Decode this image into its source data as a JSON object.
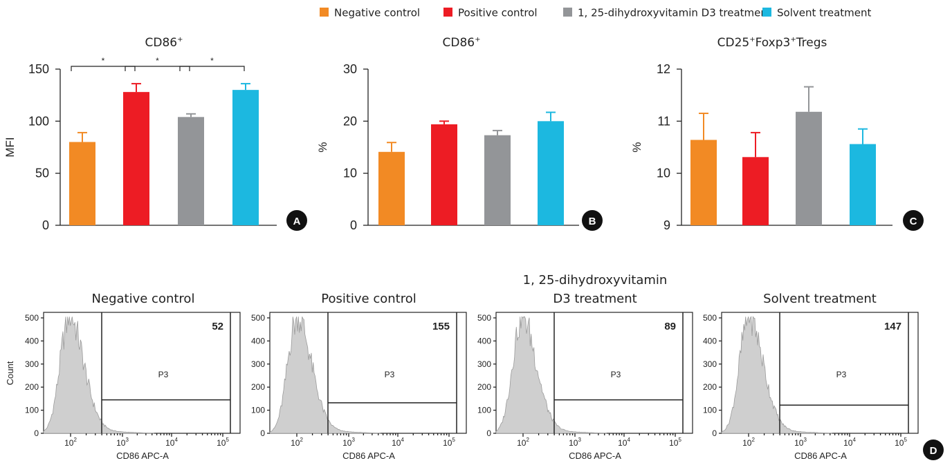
{
  "legend": [
    {
      "label": "Negative control",
      "color": "#f28a24"
    },
    {
      "label": "Positive control",
      "color": "#ed1c24"
    },
    {
      "label": "1, 25-dihydroxyvitamin D3 treatment",
      "color": "#939598"
    },
    {
      "label": "Solvent treatment",
      "color": "#1cb8e0"
    }
  ],
  "chart_data": [
    {
      "panel": "A",
      "type": "bar",
      "title": "CD86",
      "title_sup": "+",
      "ylabel": "MFI",
      "ylim": [
        0,
        150
      ],
      "yticks": [
        0,
        50,
        100,
        150
      ],
      "categories": [
        "Negative control",
        "Positive control",
        "1, 25-dihydroxyvitamin D3 treatment",
        "Solvent treatment"
      ],
      "values": [
        80,
        128,
        104,
        130
      ],
      "errors": [
        9,
        8,
        3,
        6
      ],
      "significance": [
        {
          "from": 0,
          "to": 1,
          "label": "*"
        },
        {
          "from": 1,
          "to": 2,
          "label": "*"
        },
        {
          "from": 2,
          "to": 3,
          "label": "*"
        }
      ]
    },
    {
      "panel": "B",
      "type": "bar",
      "title": "CD86",
      "title_sup": "+",
      "ylabel": "%",
      "ylim": [
        0,
        30
      ],
      "yticks": [
        0,
        10,
        20,
        30
      ],
      "categories": [
        "Negative control",
        "Positive control",
        "1, 25-dihydroxyvitamin D3 treatment",
        "Solvent treatment"
      ],
      "values": [
        14.1,
        19.4,
        17.3,
        20.0
      ],
      "errors": [
        1.8,
        0.6,
        0.9,
        1.7
      ],
      "significance": []
    },
    {
      "panel": "C",
      "type": "bar",
      "title_parts": [
        {
          "t": "CD25",
          "sup": false
        },
        {
          "t": "+",
          "sup": true
        },
        {
          "t": "Foxp3",
          "sup": false
        },
        {
          "t": "+",
          "sup": true
        },
        {
          "t": "Tregs",
          "sup": false
        }
      ],
      "ylabel": "%",
      "ylim": [
        9,
        12
      ],
      "yticks": [
        9,
        10,
        11,
        12
      ],
      "categories": [
        "Negative control",
        "Positive control",
        "1, 25-dihydroxyvitamin D3 treatment",
        "Solvent treatment"
      ],
      "values": [
        10.64,
        10.31,
        11.18,
        10.56
      ],
      "errors": [
        0.51,
        0.47,
        0.48,
        0.29
      ],
      "significance": []
    }
  ],
  "histograms": {
    "panel": "D",
    "type": "histogram",
    "xlabel": "CD86 APC-A",
    "ylabel": "Count",
    "gate_label": "P3",
    "ylim": [
      0,
      500
    ],
    "yticks": [
      0,
      100,
      200,
      300,
      400,
      500
    ],
    "xtick_labels": [
      "10",
      "10",
      "10",
      "10"
    ],
    "xtick_exponents": [
      "2",
      "3",
      "4",
      "5"
    ],
    "panels": [
      {
        "title_lines": [
          "Negative control"
        ],
        "count": "52",
        "gate_level": 145
      },
      {
        "title_lines": [
          "Positive control"
        ],
        "count": "155",
        "gate_level": 132
      },
      {
        "title_lines": [
          "1, 25-dihydroxyvitamin",
          "D3 treatment"
        ],
        "count": "89",
        "gate_level": 145
      },
      {
        "title_lines": [
          "Solvent treatment"
        ],
        "count": "147",
        "gate_level": 122
      }
    ]
  }
}
